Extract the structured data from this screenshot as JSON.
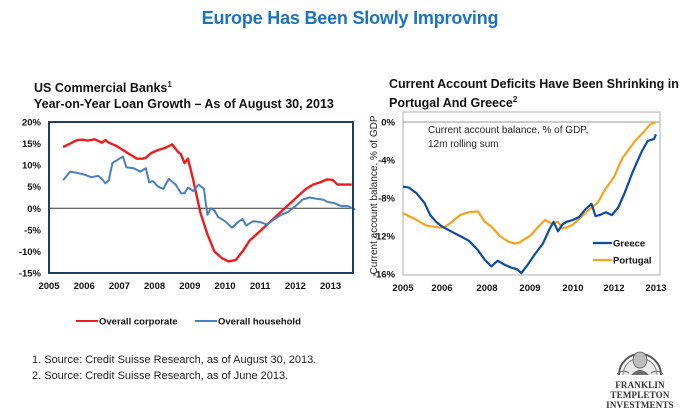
{
  "page": {
    "title": "Europe Has Been Slowly Improving",
    "footnotes": [
      "1. Source: Credit Suisse Research,  as of August 30, 2013.",
      "2. Source: Credit Suisse Research, as of  June 2013."
    ],
    "logo": {
      "icon": "benjamin-franklin-portrait-icon",
      "line1": "FRANKLIN TEMPLETON",
      "line2": "INVESTMENTS"
    }
  },
  "chart_data": [
    {
      "type": "line",
      "title_line1": "US Commercial Banks",
      "title_sup": "1",
      "title_line2": "Year-on-Year Loan Growth – As of August 30, 2013",
      "xlabel": "",
      "ylabel": "",
      "xlim": [
        2005,
        2013.75
      ],
      "ylim": [
        -15,
        20
      ],
      "x_ticks": [
        2005,
        2006,
        2007,
        2008,
        2009,
        2010,
        2011,
        2012,
        2013
      ],
      "x_tick_labels": [
        "2005",
        "2006",
        "2007",
        "2008",
        "2009",
        "2010",
        "2011",
        "2012",
        "2013"
      ],
      "y_ticks": [
        20,
        15,
        10,
        5,
        0,
        -5,
        -10,
        -15
      ],
      "y_tick_labels": [
        "20%",
        "15%",
        "10%",
        "5%",
        "0%",
        "-5%",
        "-10%",
        "-15%"
      ],
      "zero_line": true,
      "grid": false,
      "legend_position": "bottom",
      "series": [
        {
          "name": "Overall corporate",
          "color": "#ee1c1c",
          "x": [
            2005.4,
            2005.6,
            2005.8,
            2005.95,
            2006.1,
            2006.3,
            2006.5,
            2006.6,
            2006.7,
            2006.9,
            2007.1,
            2007.3,
            2007.5,
            2007.65,
            2007.75,
            2007.9,
            2008.1,
            2008.3,
            2008.5,
            2008.65,
            2008.75,
            2008.85,
            2008.95,
            2009.1,
            2009.3,
            2009.5,
            2009.7,
            2009.9,
            2010.1,
            2010.3,
            2010.5,
            2010.7,
            2010.9,
            2011.1,
            2011.3,
            2011.5,
            2011.7,
            2011.9,
            2012.1,
            2012.3,
            2012.5,
            2012.7,
            2012.9,
            2013.05,
            2013.2,
            2013.4,
            2013.6
          ],
          "y": [
            14.2,
            15.0,
            15.8,
            15.9,
            15.7,
            16.0,
            15.2,
            15.8,
            15.2,
            14.5,
            13.5,
            12.5,
            11.5,
            11.5,
            11.7,
            12.8,
            13.5,
            14.0,
            14.8,
            13.2,
            12.5,
            10.5,
            11.5,
            6.5,
            -1.0,
            -6.0,
            -10.0,
            -11.5,
            -12.3,
            -12.0,
            -10.0,
            -7.5,
            -6.0,
            -4.5,
            -3.0,
            -1.5,
            0.0,
            1.5,
            3.0,
            4.5,
            5.5,
            6.0,
            6.7,
            6.6,
            5.5,
            5.5,
            5.5
          ]
        },
        {
          "name": "Overall household",
          "color": "#4a7fc1",
          "x": [
            2005.4,
            2005.6,
            2005.8,
            2006.0,
            2006.2,
            2006.4,
            2006.5,
            2006.6,
            2006.7,
            2006.8,
            2007.0,
            2007.1,
            2007.2,
            2007.4,
            2007.6,
            2007.75,
            2007.85,
            2007.95,
            2008.1,
            2008.25,
            2008.4,
            2008.6,
            2008.75,
            2008.85,
            2008.95,
            2009.1,
            2009.25,
            2009.4,
            2009.5,
            2009.6,
            2009.7,
            2009.8,
            2010.0,
            2010.2,
            2010.4,
            2010.5,
            2010.6,
            2010.8,
            2011.0,
            2011.2,
            2011.4,
            2011.6,
            2011.8,
            2012.0,
            2012.2,
            2012.4,
            2012.6,
            2012.8,
            2012.9,
            2013.1,
            2013.3,
            2013.5,
            2013.7
          ],
          "y": [
            6.5,
            8.5,
            8.2,
            7.8,
            7.2,
            7.5,
            6.8,
            5.8,
            6.5,
            10.5,
            11.5,
            12.0,
            9.5,
            9.3,
            8.5,
            9.3,
            6.0,
            6.3,
            5.0,
            4.5,
            6.8,
            5.5,
            3.5,
            3.5,
            4.8,
            4.0,
            5.5,
            4.5,
            -1.5,
            0.0,
            -0.5,
            -2.0,
            -3.0,
            -4.5,
            -3.0,
            -2.5,
            -4.0,
            -3.0,
            -3.2,
            -3.8,
            -2.5,
            -1.5,
            -0.8,
            0.5,
            2.0,
            2.5,
            2.2,
            2.0,
            1.5,
            1.2,
            0.5,
            0.5,
            -0.3
          ]
        }
      ]
    },
    {
      "type": "line",
      "title_line1": "Current Account Deficits Have Been Shrinking in",
      "title_line2": "Portugal And Greece",
      "title_sup": "2",
      "xlabel": "",
      "ylabel": "Current account balance, % of GDP",
      "annotation_line1": "Current account balance, % of GDP,",
      "annotation_line2": "12m rolling sum",
      "x_scale": "categorical-index",
      "x_scale_note": "Tick labels are evenly spaced but skip 2007 and 2011, so x values are positions on the printed tick scale (0 = first label, 6 = last label), not calendar years.",
      "xlim": [
        0,
        6
      ],
      "ylim": [
        -16,
        0
      ],
      "x_tick_labels": [
        "2005",
        "2006",
        "2008",
        "2009",
        "2010",
        "2012",
        "2013"
      ],
      "y_ticks": [
        0,
        -4,
        -8,
        -12,
        -16
      ],
      "y_tick_labels": [
        "0%",
        "-4%",
        "-8%",
        "-12%",
        "-16%"
      ],
      "zero_line": true,
      "grid": false,
      "legend_position": "bottom-right",
      "series": [
        {
          "name": "Greece",
          "color": "#0c4ca3",
          "x": [
            0.0,
            0.15,
            0.35,
            0.55,
            0.7,
            0.85,
            1.0,
            1.2,
            1.4,
            1.6,
            1.8,
            1.95,
            2.1,
            2.25,
            2.4,
            2.55,
            2.7,
            2.8,
            2.95,
            3.1,
            3.3,
            3.45,
            3.55,
            3.65,
            3.75,
            3.85,
            4.0,
            4.15,
            4.3,
            4.45,
            4.55,
            4.65,
            4.8,
            4.95,
            5.1,
            5.25,
            5.45,
            5.65,
            5.8,
            5.95,
            6.0
          ],
          "y": [
            -6.8,
            -6.9,
            -7.5,
            -8.5,
            -9.8,
            -10.5,
            -11.0,
            -11.5,
            -12.0,
            -12.5,
            -13.5,
            -14.5,
            -15.2,
            -14.6,
            -15.0,
            -15.3,
            -15.5,
            -15.9,
            -15.0,
            -14.0,
            -12.8,
            -11.3,
            -10.5,
            -11.5,
            -10.8,
            -10.5,
            -10.3,
            -10.0,
            -9.2,
            -8.6,
            -9.9,
            -9.8,
            -9.5,
            -9.8,
            -9.0,
            -7.5,
            -5.2,
            -3.2,
            -2.0,
            -1.8,
            -1.3
          ],
          "label_position": "legend"
        },
        {
          "name": "Portugal",
          "color": "#f5a31c",
          "x": [
            0.0,
            0.3,
            0.6,
            0.9,
            1.05,
            1.2,
            1.4,
            1.6,
            1.8,
            1.95,
            2.1,
            2.3,
            2.5,
            2.65,
            2.75,
            2.85,
            3.0,
            3.2,
            3.35,
            3.5,
            3.65,
            3.75,
            3.85,
            4.0,
            4.2,
            4.4,
            4.6,
            4.8,
            5.0,
            5.2,
            5.35,
            5.5,
            5.7,
            5.85,
            6.0
          ],
          "y": [
            -9.6,
            -10.2,
            -10.9,
            -11.1,
            -11.1,
            -10.6,
            -9.8,
            -9.5,
            -9.4,
            -10.5,
            -11.0,
            -12.0,
            -12.6,
            -12.8,
            -12.7,
            -12.4,
            -12.0,
            -11.0,
            -10.3,
            -10.7,
            -10.5,
            -11.2,
            -11.1,
            -10.8,
            -10.0,
            -9.2,
            -8.5,
            -7.0,
            -5.8,
            -3.8,
            -2.9,
            -2.0,
            -1.1,
            -0.3,
            0.0
          ],
          "label_position": "legend"
        }
      ]
    }
  ]
}
